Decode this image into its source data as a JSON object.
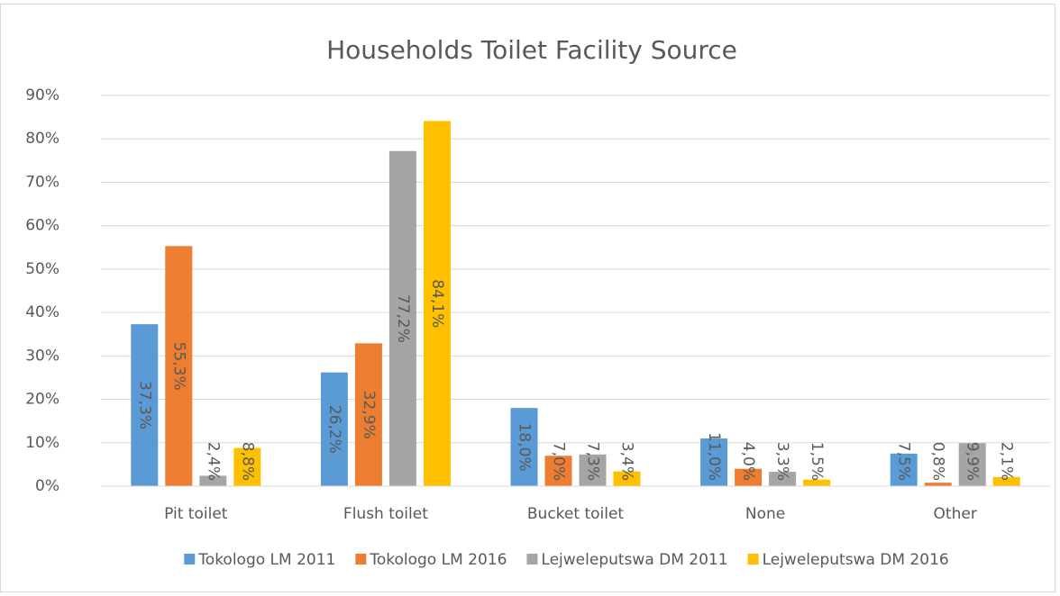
{
  "chart_data": {
    "type": "bar",
    "title": "Households Toilet Facility Source",
    "categories": [
      "Pit toilet",
      "Flush toilet",
      "Bucket toilet",
      "None",
      "Other"
    ],
    "series": [
      {
        "name": "Tokologo LM 2011",
        "color": "#5b9bd5",
        "values": [
          37.3,
          26.2,
          18.0,
          11.0,
          7.5
        ],
        "value_labels": [
          "37,3%",
          "26,2%",
          "18,0%",
          "11,0%",
          "7,5%"
        ]
      },
      {
        "name": "Tokologo LM 2016",
        "color": "#ed7d31",
        "values": [
          55.3,
          32.9,
          7.0,
          4.0,
          0.8
        ],
        "value_labels": [
          "55,3%",
          "32,9%",
          "7,0%",
          "4,0%",
          "0,8%"
        ]
      },
      {
        "name": "Lejweleputswa DM 2011",
        "color": "#a5a5a5",
        "values": [
          2.4,
          77.2,
          7.3,
          3.3,
          9.9
        ],
        "value_labels": [
          "2,4%",
          "77,2%",
          "7,3%",
          "3,3%",
          "9,9%"
        ]
      },
      {
        "name": "Lejweleputswa DM 2016",
        "color": "#ffc000",
        "values": [
          8.8,
          84.1,
          3.4,
          1.5,
          2.1
        ],
        "value_labels": [
          "8,8%",
          "84,1%",
          "3,4%",
          "1,5%",
          "2,1%"
        ]
      }
    ],
    "ylim": [
      0,
      90
    ],
    "yticks": [
      {
        "value": 0,
        "label": "0%"
      },
      {
        "value": 10,
        "label": "10%"
      },
      {
        "value": 20,
        "label": "20%"
      },
      {
        "value": 30,
        "label": "30%"
      },
      {
        "value": 40,
        "label": "40%"
      },
      {
        "value": 50,
        "label": "50%"
      },
      {
        "value": 60,
        "label": "60%"
      },
      {
        "value": 70,
        "label": "70%"
      },
      {
        "value": 80,
        "label": "80%"
      },
      {
        "value": 90,
        "label": "90%"
      }
    ],
    "grid": true,
    "legend": "bottom"
  }
}
